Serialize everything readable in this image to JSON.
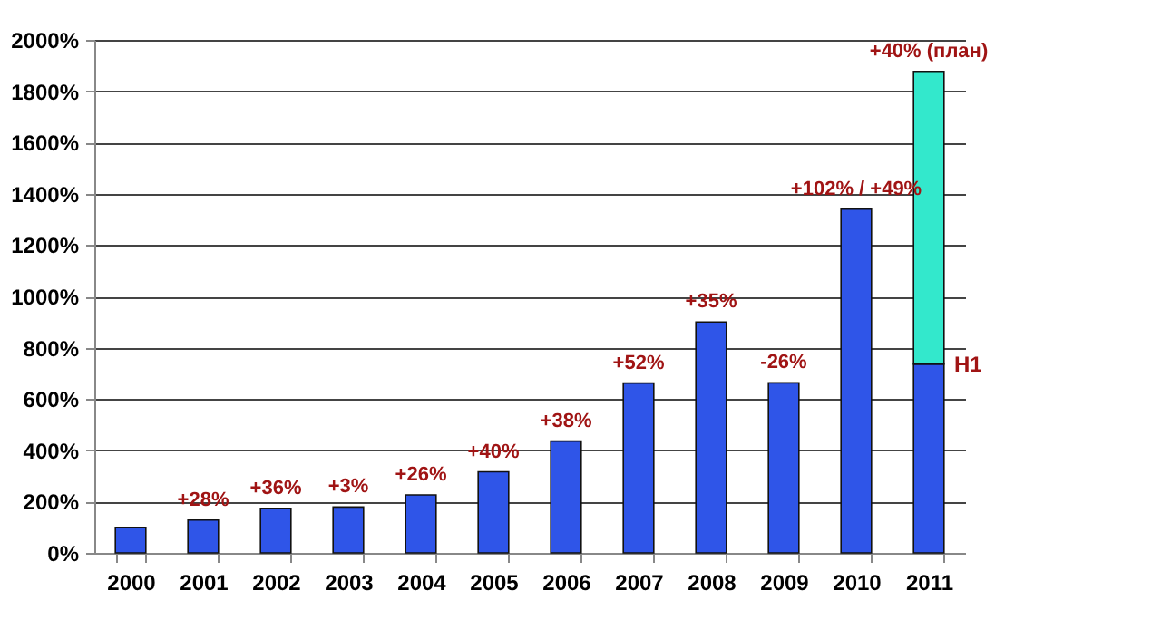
{
  "chart_data": {
    "type": "bar",
    "stacked": true,
    "categories": [
      "2000",
      "2001",
      "2002",
      "2003",
      "2004",
      "2005",
      "2006",
      "2007",
      "2008",
      "2009",
      "2010",
      "2011"
    ],
    "series": [
      {
        "color": "#2f55e8",
        "values": [
          100,
          128,
          174,
          179,
          226,
          316,
          436,
          662,
          900,
          663,
          1340,
          736
        ]
      },
      {
        "color": "#33e8cc",
        "values": [
          null,
          null,
          null,
          null,
          null,
          null,
          null,
          null,
          null,
          null,
          null,
          1141
        ]
      }
    ],
    "ylim": [
      0,
      2000
    ],
    "yticks": [
      {
        "value": 0,
        "label": "0%"
      },
      {
        "value": 200,
        "label": "200%"
      },
      {
        "value": 400,
        "label": "400%"
      },
      {
        "value": 600,
        "label": "600%"
      },
      {
        "value": 800,
        "label": "800%"
      },
      {
        "value": 1000,
        "label": "1000%"
      },
      {
        "value": 1200,
        "label": "1200%"
      },
      {
        "value": 1400,
        "label": "1400%"
      },
      {
        "value": 1600,
        "label": "1600%"
      },
      {
        "value": 1800,
        "label": "1800%"
      },
      {
        "value": 2000,
        "label": "2000%"
      }
    ],
    "grid": "y",
    "legend": false,
    "annotations": [
      {
        "text": "+28%",
        "x": "2001",
        "y": 128
      },
      {
        "text": "+36%",
        "x": "2002",
        "y": 174
      },
      {
        "text": "+3%",
        "x": "2003",
        "y": 179
      },
      {
        "text": "+26%",
        "x": "2004",
        "y": 226
      },
      {
        "text": "+40%",
        "x": "2005",
        "y": 316
      },
      {
        "text": "+38%",
        "x": "2006",
        "y": 436
      },
      {
        "text": "+52%",
        "x": "2007",
        "y": 662
      },
      {
        "text": "+35%",
        "x": "2008",
        "y": 900
      },
      {
        "text": "-26%",
        "x": "2009",
        "y": 663
      },
      {
        "text": "+102% / +49%",
        "x": "2010",
        "y": 1340
      },
      {
        "text": "+40% (план)",
        "x": "2011",
        "y": 1877
      },
      {
        "text": "H1",
        "x": "2011",
        "y": 736
      }
    ]
  }
}
